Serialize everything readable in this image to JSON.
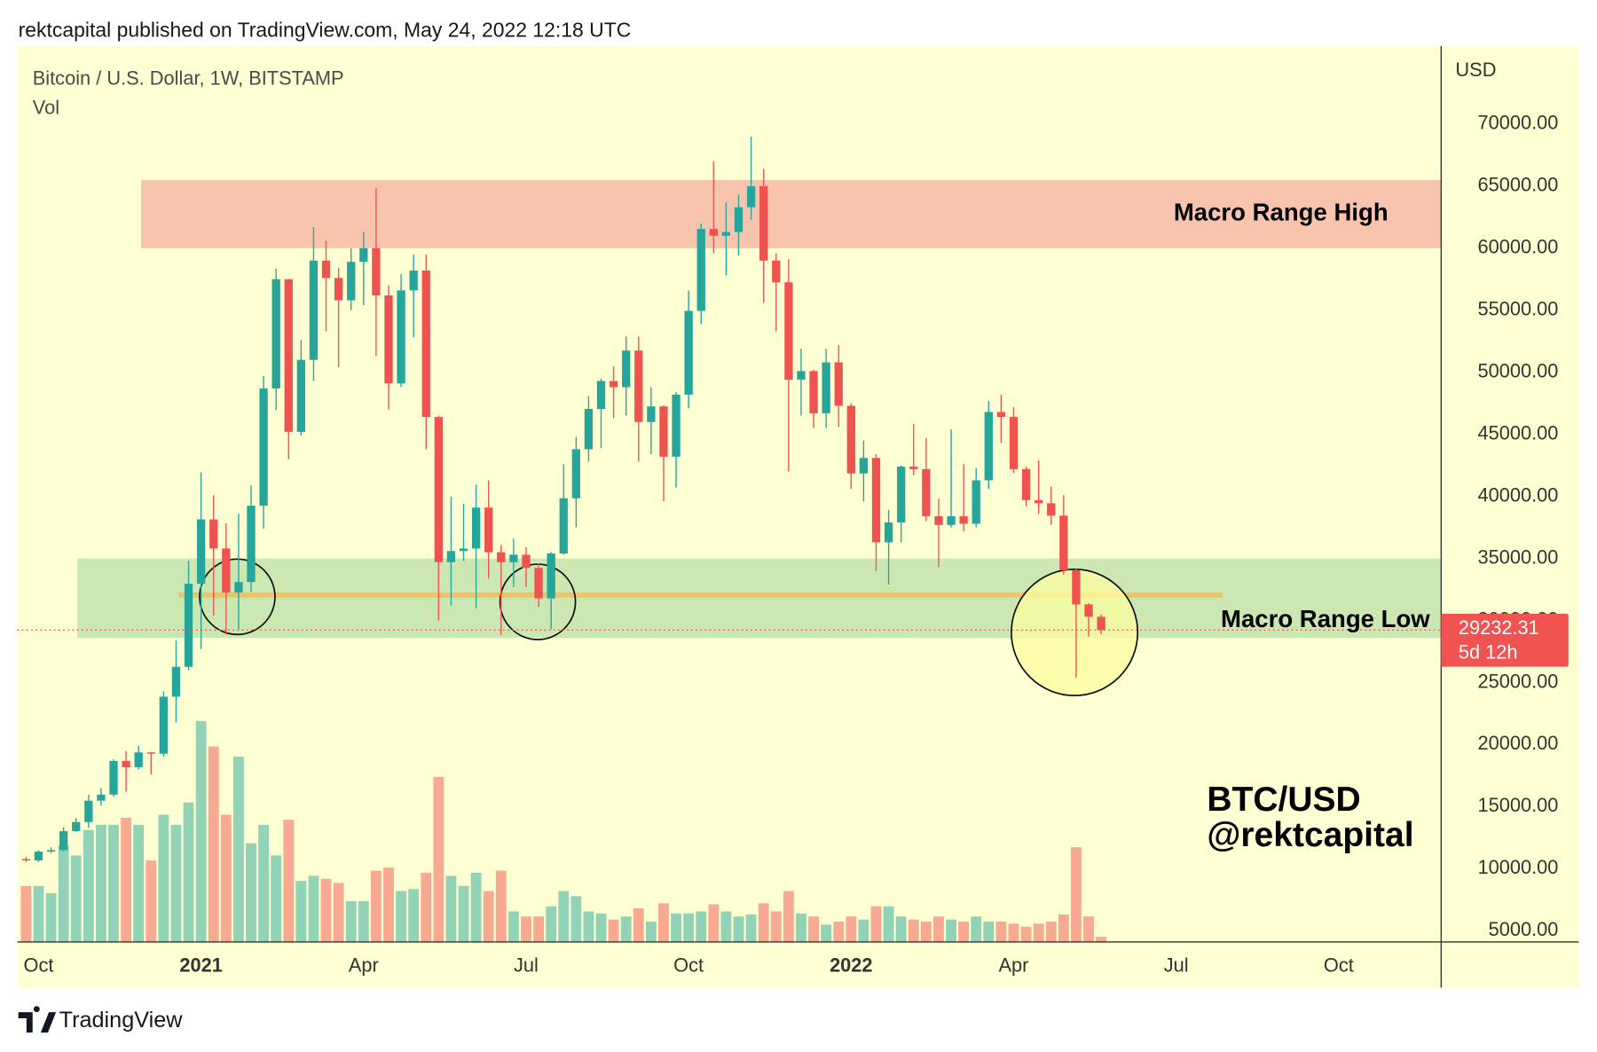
{
  "header": "rektcapital published on TradingView.com, May 24, 2022 12:18 UTC",
  "footer": "TradingView",
  "chart_data": {
    "type": "candlestick",
    "title": "Bitcoin / U.S. Dollar, 1W, BITSTAMP",
    "volume_label": "Vol",
    "y_axis_label": "USD",
    "up_color": "#26a69a",
    "down_color": "#ef5350",
    "grid": false,
    "open": [
      10780,
      10670,
      11380,
      11500,
      13030,
      13760,
      15480,
      15970,
      18680,
      18180,
      19370,
      19270,
      23860,
      26270,
      32960,
      38150,
      35800,
      32260,
      33100,
      39250,
      48700,
      57500,
      45200,
      51000,
      59000,
      57600,
      55800,
      58900,
      60000,
      56200,
      49100,
      56600,
      58200,
      46400,
      34700,
      35600,
      35800,
      39100,
      35500,
      34700,
      35300,
      34240,
      31780,
      35400,
      39850,
      43800,
      47050,
      49300,
      48800,
      51750,
      46000,
      47250,
      43200,
      48200,
      54950,
      61550,
      61000,
      61300,
      63300,
      65000,
      59000,
      57250,
      49400,
      50100,
      46700,
      50800,
      47300,
      41850,
      43100,
      36300,
      37900,
      42400,
      42200,
      38400,
      37700,
      38400,
      37800,
      41300,
      46800,
      46400,
      42200,
      39700,
      39450,
      38450,
      34050,
      31300,
      30300
    ],
    "high": [
      10950,
      11490,
      11720,
      13350,
      14090,
      15960,
      16490,
      18810,
      19480,
      19900,
      19420,
      24300,
      28400,
      34800,
      41950,
      40100,
      37850,
      38600,
      40900,
      49700,
      58350,
      57500,
      52600,
      61700,
      60600,
      58400,
      60000,
      61300,
      64850,
      57000,
      57900,
      59500,
      59500,
      46500,
      40000,
      39400,
      40950,
      41300,
      36100,
      36600,
      35900,
      34600,
      35500,
      42600,
      44800,
      48100,
      49500,
      50500,
      52900,
      52900,
      48800,
      47350,
      48400,
      56600,
      62000,
      67000,
      63700,
      64300,
      69000,
      66400,
      59600,
      59100,
      51900,
      50200,
      51900,
      52200,
      47500,
      44500,
      43400,
      38900,
      42500,
      45850,
      44700,
      39800,
      45400,
      42600,
      42300,
      47700,
      48200,
      47200,
      42400,
      42900,
      40800,
      40100,
      34200,
      31400,
      30500
    ],
    "low": [
      10530,
      10540,
      11250,
      11410,
      12960,
      13290,
      15080,
      15800,
      16200,
      18000,
      17600,
      19040,
      21800,
      26000,
      27700,
      30400,
      28850,
      29300,
      32300,
      37400,
      46950,
      43000,
      44900,
      49300,
      53300,
      50400,
      55000,
      55400,
      51300,
      47000,
      48800,
      52800,
      43800,
      30000,
      31200,
      34800,
      31000,
      33400,
      28800,
      32700,
      32700,
      31100,
      29300,
      35300,
      37500,
      42800,
      43900,
      46300,
      46500,
      42800,
      43400,
      39600,
      40700,
      47100,
      53900,
      59600,
      57800,
      59400,
      62300,
      55600,
      53300,
      42000,
      46500,
      45500,
      45500,
      45600,
      40600,
      39600,
      34000,
      32900,
      36300,
      41700,
      38000,
      34300,
      37500,
      37200,
      37500,
      40600,
      44300,
      41900,
      39200,
      38600,
      37700,
      33700,
      25400,
      28700,
      28900
    ],
    "close": [
      10670,
      11380,
      11500,
      13030,
      13760,
      15480,
      15970,
      18680,
      18180,
      19370,
      19270,
      23860,
      26270,
      32960,
      38150,
      35800,
      32260,
      33100,
      39250,
      48700,
      57500,
      45200,
      51000,
      59000,
      57600,
      55800,
      58900,
      60000,
      56200,
      49100,
      56600,
      58200,
      46400,
      34700,
      35600,
      35800,
      39100,
      35500,
      34700,
      35300,
      34240,
      31780,
      35400,
      39850,
      43800,
      47050,
      49300,
      48800,
      51750,
      46000,
      47250,
      43200,
      48200,
      54950,
      61550,
      61000,
      61300,
      63300,
      65000,
      59000,
      57250,
      49400,
      50100,
      46700,
      50800,
      47300,
      41850,
      43100,
      36300,
      37900,
      42400,
      42200,
      38400,
      37700,
      38400,
      37800,
      41300,
      46800,
      46400,
      42200,
      39700,
      39450,
      38450,
      34050,
      31300,
      30300,
      29232.31
    ],
    "volume": [
      16500,
      16500,
      14400,
      28500,
      25500,
      33000,
      34500,
      34500,
      36600,
      34500,
      24000,
      37500,
      34500,
      41100,
      65100,
      57600,
      37500,
      54600,
      29100,
      34500,
      25500,
      36000,
      18000,
      19500,
      18600,
      17400,
      12000,
      12000,
      21000,
      21900,
      15000,
      15600,
      20400,
      48600,
      19500,
      16500,
      20400,
      15000,
      21000,
      9000,
      7500,
      7500,
      10500,
      15000,
      13500,
      9000,
      8400,
      6600,
      7500,
      9900,
      6000,
      11400,
      8400,
      8400,
      9000,
      11100,
      9000,
      7500,
      8100,
      11400,
      9000,
      15000,
      8400,
      7500,
      5100,
      6000,
      7500,
      6600,
      10500,
      10500,
      7500,
      6600,
      6000,
      7500,
      6600,
      6000,
      7500,
      6000,
      6000,
      5400,
      4500,
      5400,
      6000,
      8100,
      27900,
      7500,
      1500
    ],
    "volume_lim": [
      0,
      264000
    ],
    "xlim": [
      -0.7,
      113.2
    ],
    "xticks": [
      {
        "value": 1,
        "label": "Oct"
      },
      {
        "value": 14,
        "label": "2021"
      },
      {
        "value": 27,
        "label": "Apr"
      },
      {
        "value": 40,
        "label": "Jul"
      },
      {
        "value": 53,
        "label": "Oct"
      },
      {
        "value": 66,
        "label": "2022"
      },
      {
        "value": 79,
        "label": "Apr"
      },
      {
        "value": 92,
        "label": "Jul"
      },
      {
        "value": 105,
        "label": "Oct"
      }
    ],
    "ylim": [
      4100,
      76300
    ],
    "yticks": [
      {
        "value": 5000,
        "label": "5000.00"
      },
      {
        "value": 10000,
        "label": "10000.00"
      },
      {
        "value": 15000,
        "label": "15000.00"
      },
      {
        "value": 20000,
        "label": "20000.00"
      },
      {
        "value": 25000,
        "label": "25000.00"
      },
      {
        "value": 30000,
        "label": "30000.00"
      },
      {
        "value": 35000,
        "label": "35000.00"
      },
      {
        "value": 40000,
        "label": "40000.00"
      },
      {
        "value": 45000,
        "label": "45000.00"
      },
      {
        "value": 50000,
        "label": "50000.00"
      },
      {
        "value": 55000,
        "label": "55000.00"
      },
      {
        "value": 60000,
        "label": "60000.00"
      },
      {
        "value": 65000,
        "label": "65000.00"
      },
      {
        "value": 70000,
        "label": "70000.00"
      }
    ],
    "zones": [
      {
        "label": "Macro Range High",
        "range": [
          60000,
          65500
        ],
        "x_start": 9.2,
        "color": "#f9c4ad"
      },
      {
        "label": "Macro Range Low",
        "range": [
          28600,
          35000
        ],
        "x_start": 4.1,
        "color": "#cbe8b2"
      }
    ],
    "level": {
      "value": 32050,
      "x_range": [
        12.2,
        95.7
      ],
      "color": "#e8c56c"
    },
    "last_price": 29232.31,
    "countdown": "5d 12h",
    "watermark": [
      "BTC/USD",
      "@rektcapital"
    ]
  }
}
